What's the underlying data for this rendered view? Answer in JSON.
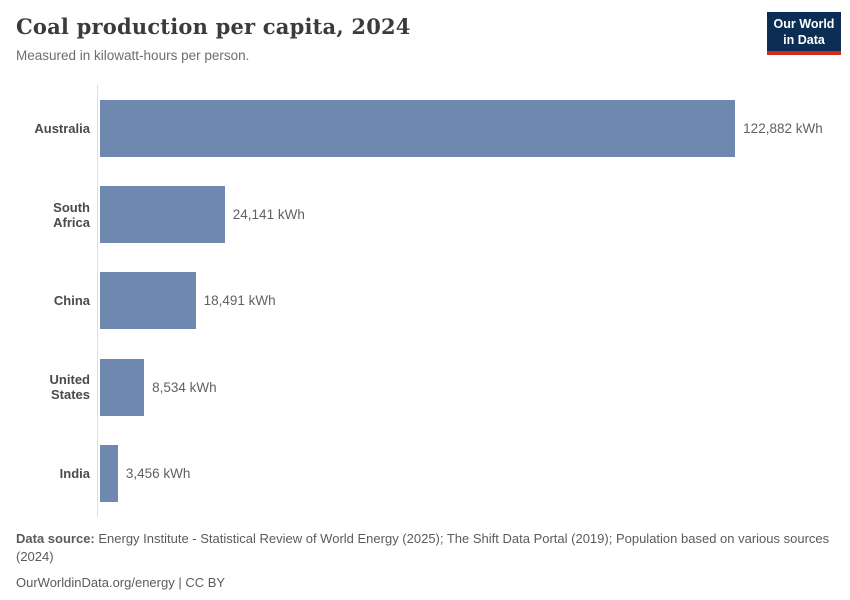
{
  "header": {
    "title": "Coal production per capita, 2024",
    "subtitle": "Measured in kilowatt-hours per person."
  },
  "logo": {
    "line1": "Our World",
    "line2": "in Data",
    "bg_color": "#0d2e54",
    "accent_color": "#d42b21"
  },
  "chart_data": {
    "type": "bar",
    "orientation": "horizontal",
    "title": "Coal production per capita, 2024",
    "subtitle": "Measured in kilowatt-hours per person.",
    "unit": "kWh",
    "categories": [
      "Australia",
      "South Africa",
      "China",
      "United States",
      "India"
    ],
    "values": [
      122882,
      24141,
      18491,
      8534,
      3456
    ],
    "value_labels": [
      "122,882 kWh",
      "24,141 kWh",
      "18,491 kWh",
      "8,534 kWh",
      "3,456 kWh"
    ],
    "bar_color": "#6e88b0",
    "axis_line_color": "#e0e0e0",
    "xlim": [
      0,
      142000
    ],
    "grid": false,
    "legend": false
  },
  "footer": {
    "data_source_label": "Data source:",
    "data_source_text": " Energy Institute - Statistical Review of World Energy (2025); The Shift Data Portal (2019); Population based on various sources (2024)",
    "link_text": "OurWorldinData.org/energy | CC BY"
  }
}
